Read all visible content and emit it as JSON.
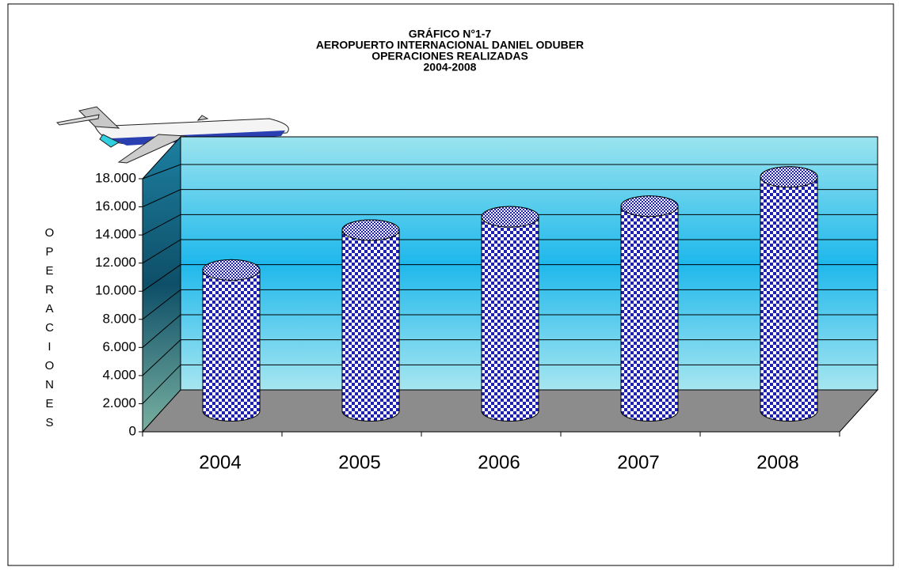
{
  "chart_data": {
    "type": "bar",
    "title": [
      "GRÁFICO N°1-7",
      "AEROPUERTO INTERNACIONAL  DANIEL ODUBER",
      "OPERACIONES REALIZADAS",
      "2004-2008"
    ],
    "y_label": "OPERACIONES",
    "categories": [
      "2004",
      "2005",
      "2006",
      "2007",
      "2008"
    ],
    "values": [
      10600,
      13600,
      14600,
      15400,
      17600
    ],
    "color": "#1a1aa8",
    "ylim": [
      0,
      18000
    ],
    "yticks": [
      0,
      {
        "value": 2000,
        "label": "2.000"
      },
      {
        "value": 4000,
        "label": "4.000"
      },
      {
        "value": 6000,
        "label": "6.000"
      },
      {
        "value": 8000,
        "label": "8.000"
      },
      {
        "value": 10000,
        "label": "10.000"
      },
      {
        "value": 12000,
        "label": "12.000"
      },
      {
        "value": 14000,
        "label": "14.000"
      },
      {
        "value": 16000,
        "label": "16.000"
      },
      {
        "value": 18000,
        "label": "18.000"
      }
    ],
    "grid": true
  }
}
